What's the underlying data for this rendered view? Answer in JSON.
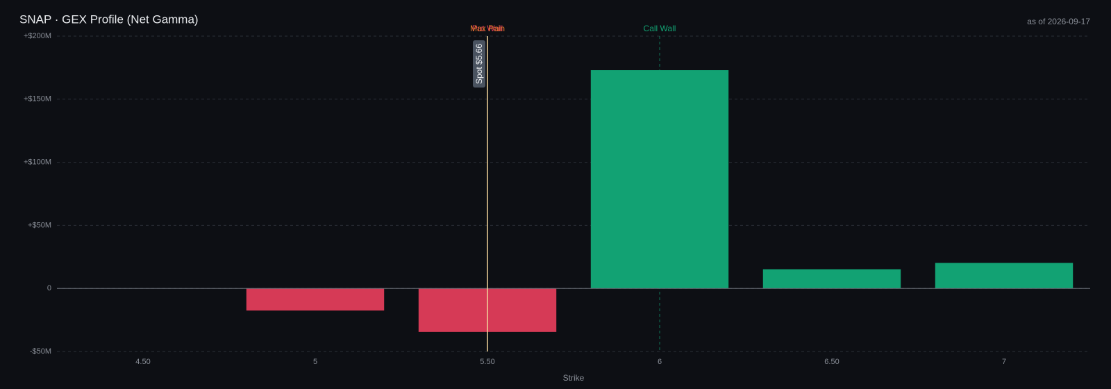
{
  "chart_data": {
    "type": "bar",
    "title": "SNAP · GEX Profile (Net Gamma)",
    "subtitle": "as of 2026-09-17",
    "x_label": "Strike",
    "categories": [
      "4.50",
      "5",
      "5.50",
      "6",
      "6.50",
      "7"
    ],
    "values": [
      0,
      -17.5,
      -34.5,
      173,
      15.2,
      20.2
    ],
    "positive_color": "#12a273",
    "negative_color": "#d63a56",
    "ylim": [
      -50,
      200
    ],
    "yticks": [
      {
        "value": -50,
        "label": "-$50M"
      },
      {
        "value": 0,
        "label": "0"
      },
      {
        "value": 50,
        "label": "+$50M"
      },
      {
        "value": 100,
        "label": "+$100M"
      },
      {
        "value": 150,
        "label": "+$150M"
      },
      {
        "value": 200,
        "label": "+$200M"
      }
    ],
    "grid": true,
    "markers": [
      {
        "label": "Put Wall",
        "category": "5.50",
        "color": "#d63a56",
        "dashed": true
      },
      {
        "label": "Max Pain",
        "category": "5.50",
        "color": "#e0782a",
        "dashed": true
      },
      {
        "label": "Call Wall",
        "category": "6",
        "color": "#12a273",
        "dashed": true
      },
      {
        "label": "Spot $5.66",
        "category": "5.50",
        "color": "#f2d49a",
        "dashed": false
      }
    ]
  }
}
